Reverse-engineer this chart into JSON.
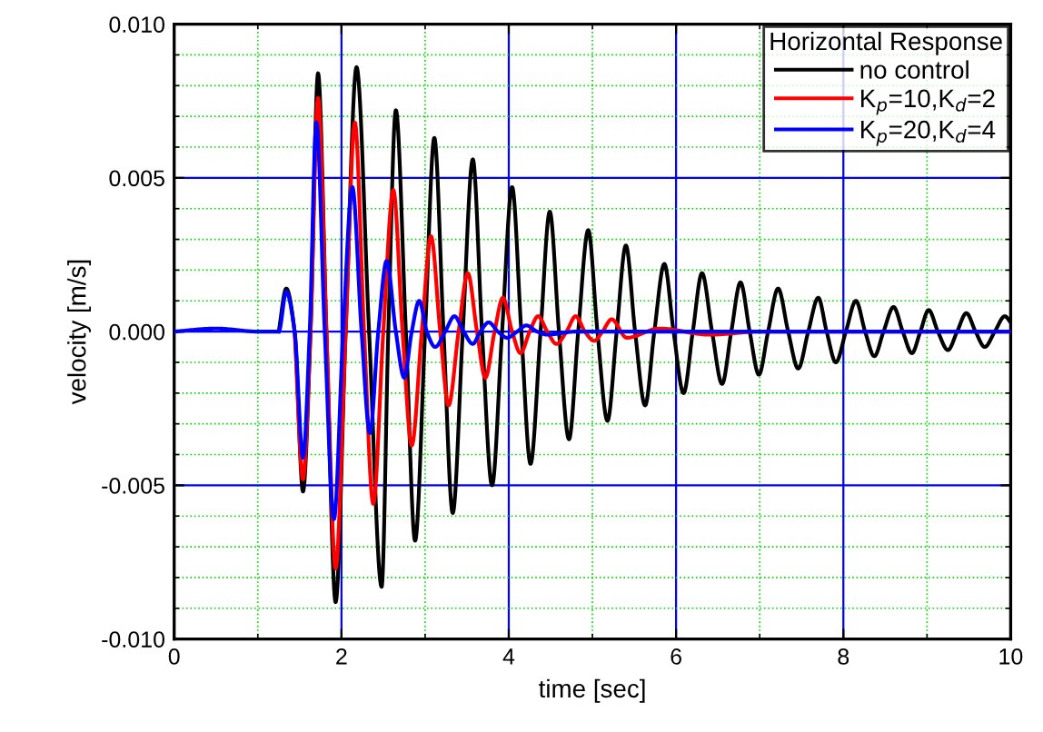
{
  "chart_data": {
    "type": "line",
    "xlabel": "time [sec]",
    "ylabel": "velocity [m/s]",
    "legend_title": "Horizontal Response",
    "legend": "top right",
    "grid": true,
    "line_style": "solid",
    "marker": "none",
    "xlim": [
      0,
      10
    ],
    "xticks": [
      0,
      {
        "value": 1,
        "label": null
      },
      2,
      {
        "value": 3,
        "label": null
      },
      4,
      {
        "value": 5,
        "label": null
      },
      6,
      {
        "value": 7,
        "label": null
      },
      8,
      {
        "value": 9,
        "label": null
      },
      10
    ],
    "ylim": [
      -0.01,
      0.01
    ],
    "yticks": [
      {
        "value": -0.01,
        "label": "-0.010"
      },
      {
        "value": -0.009,
        "label": null
      },
      {
        "value": -0.008,
        "label": null
      },
      {
        "value": -0.007,
        "label": null
      },
      {
        "value": -0.006,
        "label": null
      },
      {
        "value": -0.005,
        "label": "-0.005"
      },
      {
        "value": -0.004,
        "label": null
      },
      {
        "value": -0.003,
        "label": null
      },
      {
        "value": -0.002,
        "label": null
      },
      {
        "value": -0.001,
        "label": null
      },
      {
        "value": 0,
        "label": "0.000"
      },
      {
        "value": 0.001,
        "label": null
      },
      {
        "value": 0.002,
        "label": null
      },
      {
        "value": 0.003,
        "label": null
      },
      {
        "value": 0.004,
        "label": null
      },
      {
        "value": 0.005,
        "label": "0.005"
      },
      {
        "value": 0.006,
        "label": null
      },
      {
        "value": 0.007,
        "label": null
      },
      {
        "value": 0.008,
        "label": null
      },
      {
        "value": 0.009,
        "label": null
      },
      {
        "value": 0.01,
        "label": "0.010"
      }
    ],
    "series": [
      {
        "name": "no control",
        "color": "#000000",
        "x": [
          1.25,
          1.34,
          1.44,
          1.54,
          1.63,
          1.72,
          1.82,
          1.93,
          2.05,
          2.18,
          2.33,
          2.48,
          2.56,
          2.65,
          2.77,
          2.88,
          3.0,
          3.11,
          3.22,
          3.33,
          3.45,
          3.57,
          3.68,
          3.8,
          3.92,
          4.04,
          4.15,
          4.26,
          4.38,
          4.49,
          4.6,
          4.72,
          4.83,
          4.95,
          5.06,
          5.18,
          5.29,
          5.4,
          5.51,
          5.63,
          5.74,
          5.86,
          5.97,
          6.09,
          6.2,
          6.31,
          6.43,
          6.55,
          6.66,
          6.77,
          6.88,
          6.99,
          7.1,
          7.22,
          7.34,
          7.46,
          7.58,
          7.7,
          7.8,
          7.91,
          8.03,
          8.15,
          8.26,
          8.37,
          8.48,
          8.6,
          8.71,
          8.82,
          8.92,
          9.02,
          9.13,
          9.25,
          9.36,
          9.47,
          9.58,
          9.69,
          9.81,
          9.93,
          10.0
        ],
        "values": [
          0,
          0.0014,
          0,
          -0.0052,
          0,
          0.0084,
          0,
          -0.0088,
          0,
          0.0086,
          0,
          -0.0083,
          0,
          0.0072,
          0,
          -0.0068,
          0,
          0.0063,
          0,
          -0.0059,
          0,
          0.0056,
          0,
          -0.005,
          0,
          0.0047,
          0,
          -0.0043,
          0,
          0.0039,
          0,
          -0.0035,
          0,
          0.0033,
          0,
          -0.0029,
          0,
          0.0028,
          0,
          -0.0024,
          0,
          0.0022,
          0,
          -0.002,
          0,
          0.0019,
          0,
          -0.0017,
          0,
          0.0016,
          0,
          -0.0014,
          0,
          0.0014,
          0,
          -0.0012,
          0,
          0.0011,
          0,
          -0.001,
          0,
          0.001,
          0,
          -0.0008,
          0,
          0.0008,
          0,
          -0.0007,
          0,
          0.0007,
          0,
          -0.0006,
          0,
          0.0006,
          0,
          -0.0005,
          0,
          0.0005,
          0.0003
        ]
      },
      {
        "name": "K$_{p}$=10,K$_{d}$=2",
        "color": "#ff0000",
        "x": [
          1.44,
          1.54,
          1.63,
          1.72,
          1.82,
          1.93,
          2.05,
          2.16,
          2.27,
          2.38,
          2.5,
          2.62,
          2.73,
          2.84,
          2.96,
          3.07,
          3.18,
          3.28,
          3.4,
          3.51,
          3.62,
          3.72,
          3.83,
          3.93,
          4.04,
          4.14,
          4.25,
          4.35,
          4.46,
          4.57,
          4.69,
          4.8,
          4.91,
          5.02,
          5.12,
          5.23,
          5.41,
          5.8,
          6.4,
          7.0,
          10.0
        ],
        "values": [
          0,
          -0.0048,
          0,
          0.0076,
          0,
          -0.0077,
          0,
          0.0068,
          0,
          -0.0056,
          0,
          0.0046,
          0,
          -0.0037,
          0,
          0.0031,
          0,
          -0.0024,
          0,
          0.0019,
          0,
          -0.0015,
          0,
          0.0011,
          0,
          -0.0007,
          0,
          0.0005,
          0,
          -0.0004,
          0,
          0.0005,
          0,
          -0.0003,
          0,
          0.0004,
          -0.0002,
          0.0001,
          -0.0001,
          0,
          0
        ]
      },
      {
        "name": "K$_{p}$=20,K$_{d}$=4",
        "color": "#0000ff",
        "x": [
          0,
          0.5,
          1.0,
          1.25,
          1.34,
          1.44,
          1.54,
          1.62,
          1.7,
          1.8,
          1.91,
          2.02,
          2.13,
          2.24,
          2.34,
          2.44,
          2.54,
          2.65,
          2.75,
          2.84,
          2.93,
          3.02,
          3.12,
          3.24,
          3.35,
          3.46,
          3.57,
          3.66,
          3.76,
          3.87,
          3.98,
          4.1,
          4.21,
          4.34,
          4.46,
          4.8,
          10.0
        ],
        "values": [
          0,
          0.0001,
          0,
          0,
          0.0013,
          0,
          -0.0041,
          0,
          0.0068,
          0,
          -0.0061,
          0,
          0.0047,
          0,
          -0.0033,
          0,
          0.0023,
          0,
          -0.0015,
          0,
          0.001,
          0,
          -0.0005,
          0,
          0.0005,
          0,
          -0.0004,
          0,
          0.0003,
          0,
          -0.0002,
          0,
          0.0002,
          0,
          -0.0001,
          0,
          0
        ]
      }
    ]
  }
}
